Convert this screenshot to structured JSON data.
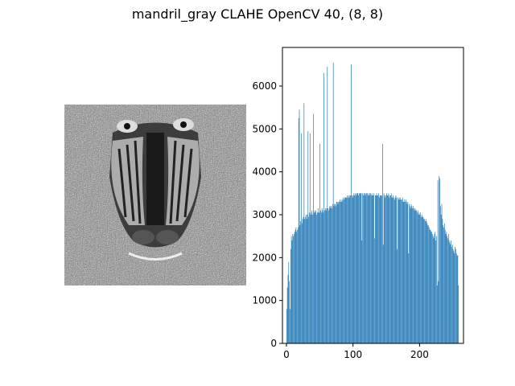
{
  "figure": {
    "title": "mandril_gray CLAHE OpenCV 40, (8, 8)"
  },
  "image_panel": {
    "description_icon": "mandrill-face-grayscale-image"
  },
  "chart_data": {
    "type": "bar",
    "xlabel": "",
    "ylabel": "",
    "xlim": [
      -6,
      266
    ],
    "ylim": [
      0,
      6900
    ],
    "xticks": [
      0,
      100,
      200
    ],
    "yticks": [
      0,
      1000,
      2000,
      3000,
      4000,
      5000,
      6000
    ],
    "bar_color": "#1f77b4",
    "grid": false,
    "bins": 256,
    "values": [
      800,
      1300,
      1600,
      1900,
      1450,
      800,
      2200,
      2500,
      2400,
      2550,
      2500,
      2550,
      2600,
      2650,
      2700,
      2600,
      2650,
      2700,
      5250,
      5450,
      2750,
      2850,
      4900,
      2800,
      2900,
      2950,
      5600,
      2900,
      2950,
      3000,
      2900,
      3000,
      4950,
      2950,
      3050,
      4900,
      3000,
      3050,
      3100,
      3000,
      5350,
      3050,
      3100,
      3050,
      3100,
      3000,
      3050,
      3150,
      3050,
      3050,
      4650,
      3100,
      3050,
      3150,
      3100,
      3050,
      6300,
      3100,
      3150,
      3100,
      3150,
      6450,
      3150,
      3100,
      3200,
      3150,
      3200,
      3200,
      3150,
      3250,
      6550,
      3200,
      3250,
      3250,
      3200,
      3300,
      3300,
      3250,
      3300,
      3300,
      3350,
      3300,
      3350,
      3300,
      3350,
      3400,
      3350,
      3400,
      3400,
      3400,
      3400,
      3450,
      3400,
      3450,
      3400,
      3450,
      3450,
      6500,
      3450,
      3400,
      3450,
      3500,
      3450,
      3500,
      3450,
      3500,
      3500,
      3500,
      3450,
      3500,
      3500,
      3500,
      3500,
      2400,
      3500,
      3450,
      3500,
      3500,
      3450,
      3500,
      3500,
      3500,
      3450,
      3500,
      3450,
      3500,
      3500,
      3450,
      3500,
      3450,
      3450,
      3500,
      2450,
      3450,
      3450,
      3500,
      3450,
      3450,
      3500,
      3400,
      3450,
      3450,
      3450,
      3450,
      4650,
      2300,
      3500,
      3450,
      3400,
      3450,
      3500,
      3450,
      3450,
      3500,
      3400,
      3450,
      3450,
      3500,
      3400,
      3400,
      3450,
      3400,
      3350,
      3400,
      3450,
      3400,
      2200,
      3400,
      3350,
      3400,
      3350,
      3400,
      3350,
      3350,
      3400,
      3300,
      3300,
      3350,
      3300,
      3350,
      3300,
      3250,
      3300,
      2100,
      3250,
      3200,
      3150,
      3250,
      3200,
      3150,
      3200,
      3150,
      3100,
      3150,
      3100,
      3100,
      3050,
      3100,
      3000,
      3050,
      3000,
      3050,
      2950,
      3000,
      2950,
      2950,
      2900,
      2900,
      2850,
      2900,
      2850,
      2800,
      2750,
      2750,
      2700,
      2650,
      2650,
      2600,
      2600,
      2550,
      2500,
      2450,
      2550,
      2600,
      2400,
      2500,
      1350,
      3800,
      1450,
      3900,
      3850,
      3200,
      3000,
      3250,
      2900,
      2750,
      2700,
      2800,
      2650,
      2550,
      2600,
      2500,
      2450,
      2550,
      2400,
      2350,
      2300,
      2400,
      2250,
      2300,
      2200,
      2150,
      2100,
      2250,
      2200,
      2100,
      2050,
      2050,
      1350
    ]
  }
}
